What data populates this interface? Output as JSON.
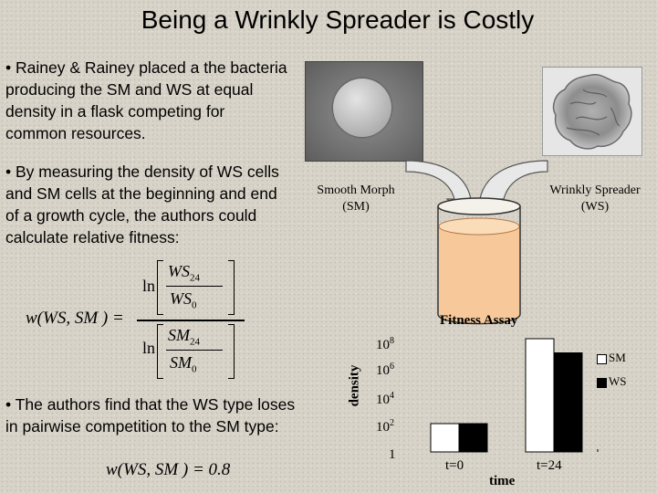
{
  "slide": {
    "title": "Being a Wrinkly Spreader is Costly",
    "bullets": [
      "• Rainey & Rainey placed a the bacteria producing the SM and WS at equal density in a flask competing for common resources.",
      "• By measuring the density of WS cells and SM cells at the beginning and end of a growth cycle, the authors could calculate relative fitness:",
      "• The authors find that the WS type loses in pairwise competition to the SM type:"
    ]
  },
  "formula1": {
    "lhs": "w(WS, SM ) =",
    "ln_top": "ln",
    "ln_bottom": "ln",
    "num_top": "WS",
    "num_top_sub": "24",
    "den_top": "WS",
    "den_top_sub": "0",
    "num_bottom": "SM",
    "num_bottom_sub": "24",
    "den_bottom": "SM",
    "den_bottom_sub": "0"
  },
  "formula2": {
    "text": "w(WS, SM ) = 0.8"
  },
  "diagram": {
    "smooth_label_line1": "Smooth Morph",
    "smooth_label_line2": "(SM)",
    "wrinkly_label_line1": "Wrinkly Spreader",
    "wrinkly_label_line2": "(WS)",
    "flask_fill_color": "#f6c89a",
    "arrow_color": "#e8e8e8"
  },
  "chart_data": {
    "type": "bar",
    "title": "Fitness Assay",
    "xlabel": "time",
    "ylabel": "density",
    "y_scale": "log",
    "y_ticks": [
      "1",
      "10^8",
      "10^6",
      "10^4",
      "10^2"
    ],
    "categories": [
      "t=0",
      "t=24"
    ],
    "series": [
      {
        "name": "SM",
        "color": "#ffffff",
        "values": [
          100,
          100000000
        ]
      },
      {
        "name": "WS",
        "color": "#000000",
        "values": [
          100,
          10000000
        ]
      }
    ],
    "legend": "right",
    "colors": {
      "SM": "#ffffff",
      "WS": "#000000"
    }
  }
}
